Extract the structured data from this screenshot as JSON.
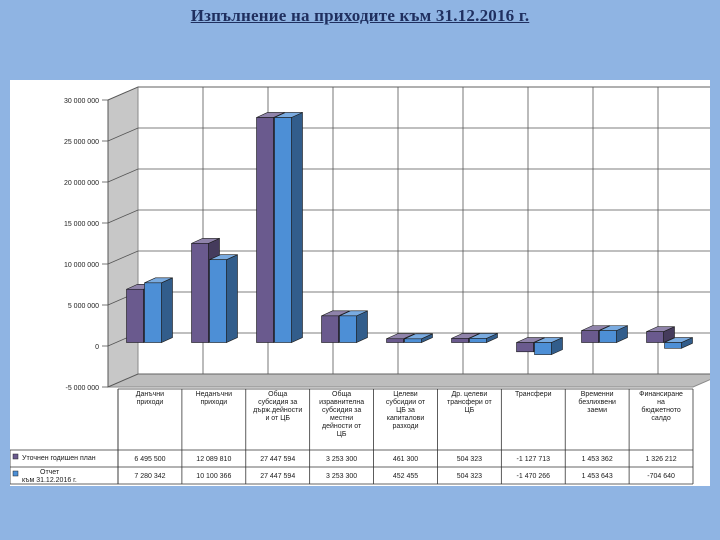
{
  "page_title": "Изпълнение на приходите към 31.12.2016 г.",
  "chart_data": {
    "type": "bar",
    "style": "3d-clustered-column",
    "ylim": [
      -5000000,
      30000000
    ],
    "yticks": [
      -5000000,
      0,
      5000000,
      10000000,
      15000000,
      20000000,
      25000000,
      30000000
    ],
    "ytick_labels": [
      "-5 000 000",
      "0",
      "5 000 000",
      "10 000 000",
      "15 000 000",
      "20 000 000",
      "25 000 000",
      "30 000 000"
    ],
    "grid": true,
    "legend_placement": "left of data table",
    "categories": [
      [
        "Данъчни",
        "приходи"
      ],
      [
        "Неданъчни",
        "приходи"
      ],
      [
        "Обща",
        "субсидия за",
        "държ.дейности",
        "и от ЦБ"
      ],
      [
        "Обща",
        "изравнителна",
        "субсидия за",
        "местни",
        "дейности от",
        "ЦБ"
      ],
      [
        "Целеви",
        "субсидии от",
        "ЦБ за",
        "капиталови",
        "разходи"
      ],
      [
        "Др. целеви",
        "трансфери от",
        "ЦБ"
      ],
      [
        "Трансфери"
      ],
      [
        "Временни",
        "безлихвени",
        "заеми"
      ],
      [
        "Финансиране",
        "на",
        "бюджетното",
        "салдо"
      ]
    ],
    "series": [
      {
        "name": "Уточнен годишен план",
        "color": "#6a5a8e",
        "values": [
          6495500,
          12089810,
          27447594,
          3253300,
          461300,
          504323,
          -1127713,
          1453362,
          1326212
        ],
        "value_labels": [
          "6 495 500",
          "12 089 810",
          "27 447 594",
          "3 253 300",
          "461 300",
          "504 323",
          "-1 127 713",
          "1 453 362",
          "1 326 212"
        ]
      },
      {
        "name": "Отчет към 31.12.2016 г.",
        "color": "#4d8fd6",
        "values": [
          7280342,
          10100366,
          27447594,
          3253300,
          452455,
          504323,
          -1470266,
          1453643,
          -704640
        ],
        "value_labels": [
          "7 280 342",
          "10 100 366",
          "27 447 594",
          "3 253 300",
          "452 455",
          "504 323",
          "-1 470 266",
          "1 453 643",
          "-704 640"
        ]
      }
    ]
  }
}
